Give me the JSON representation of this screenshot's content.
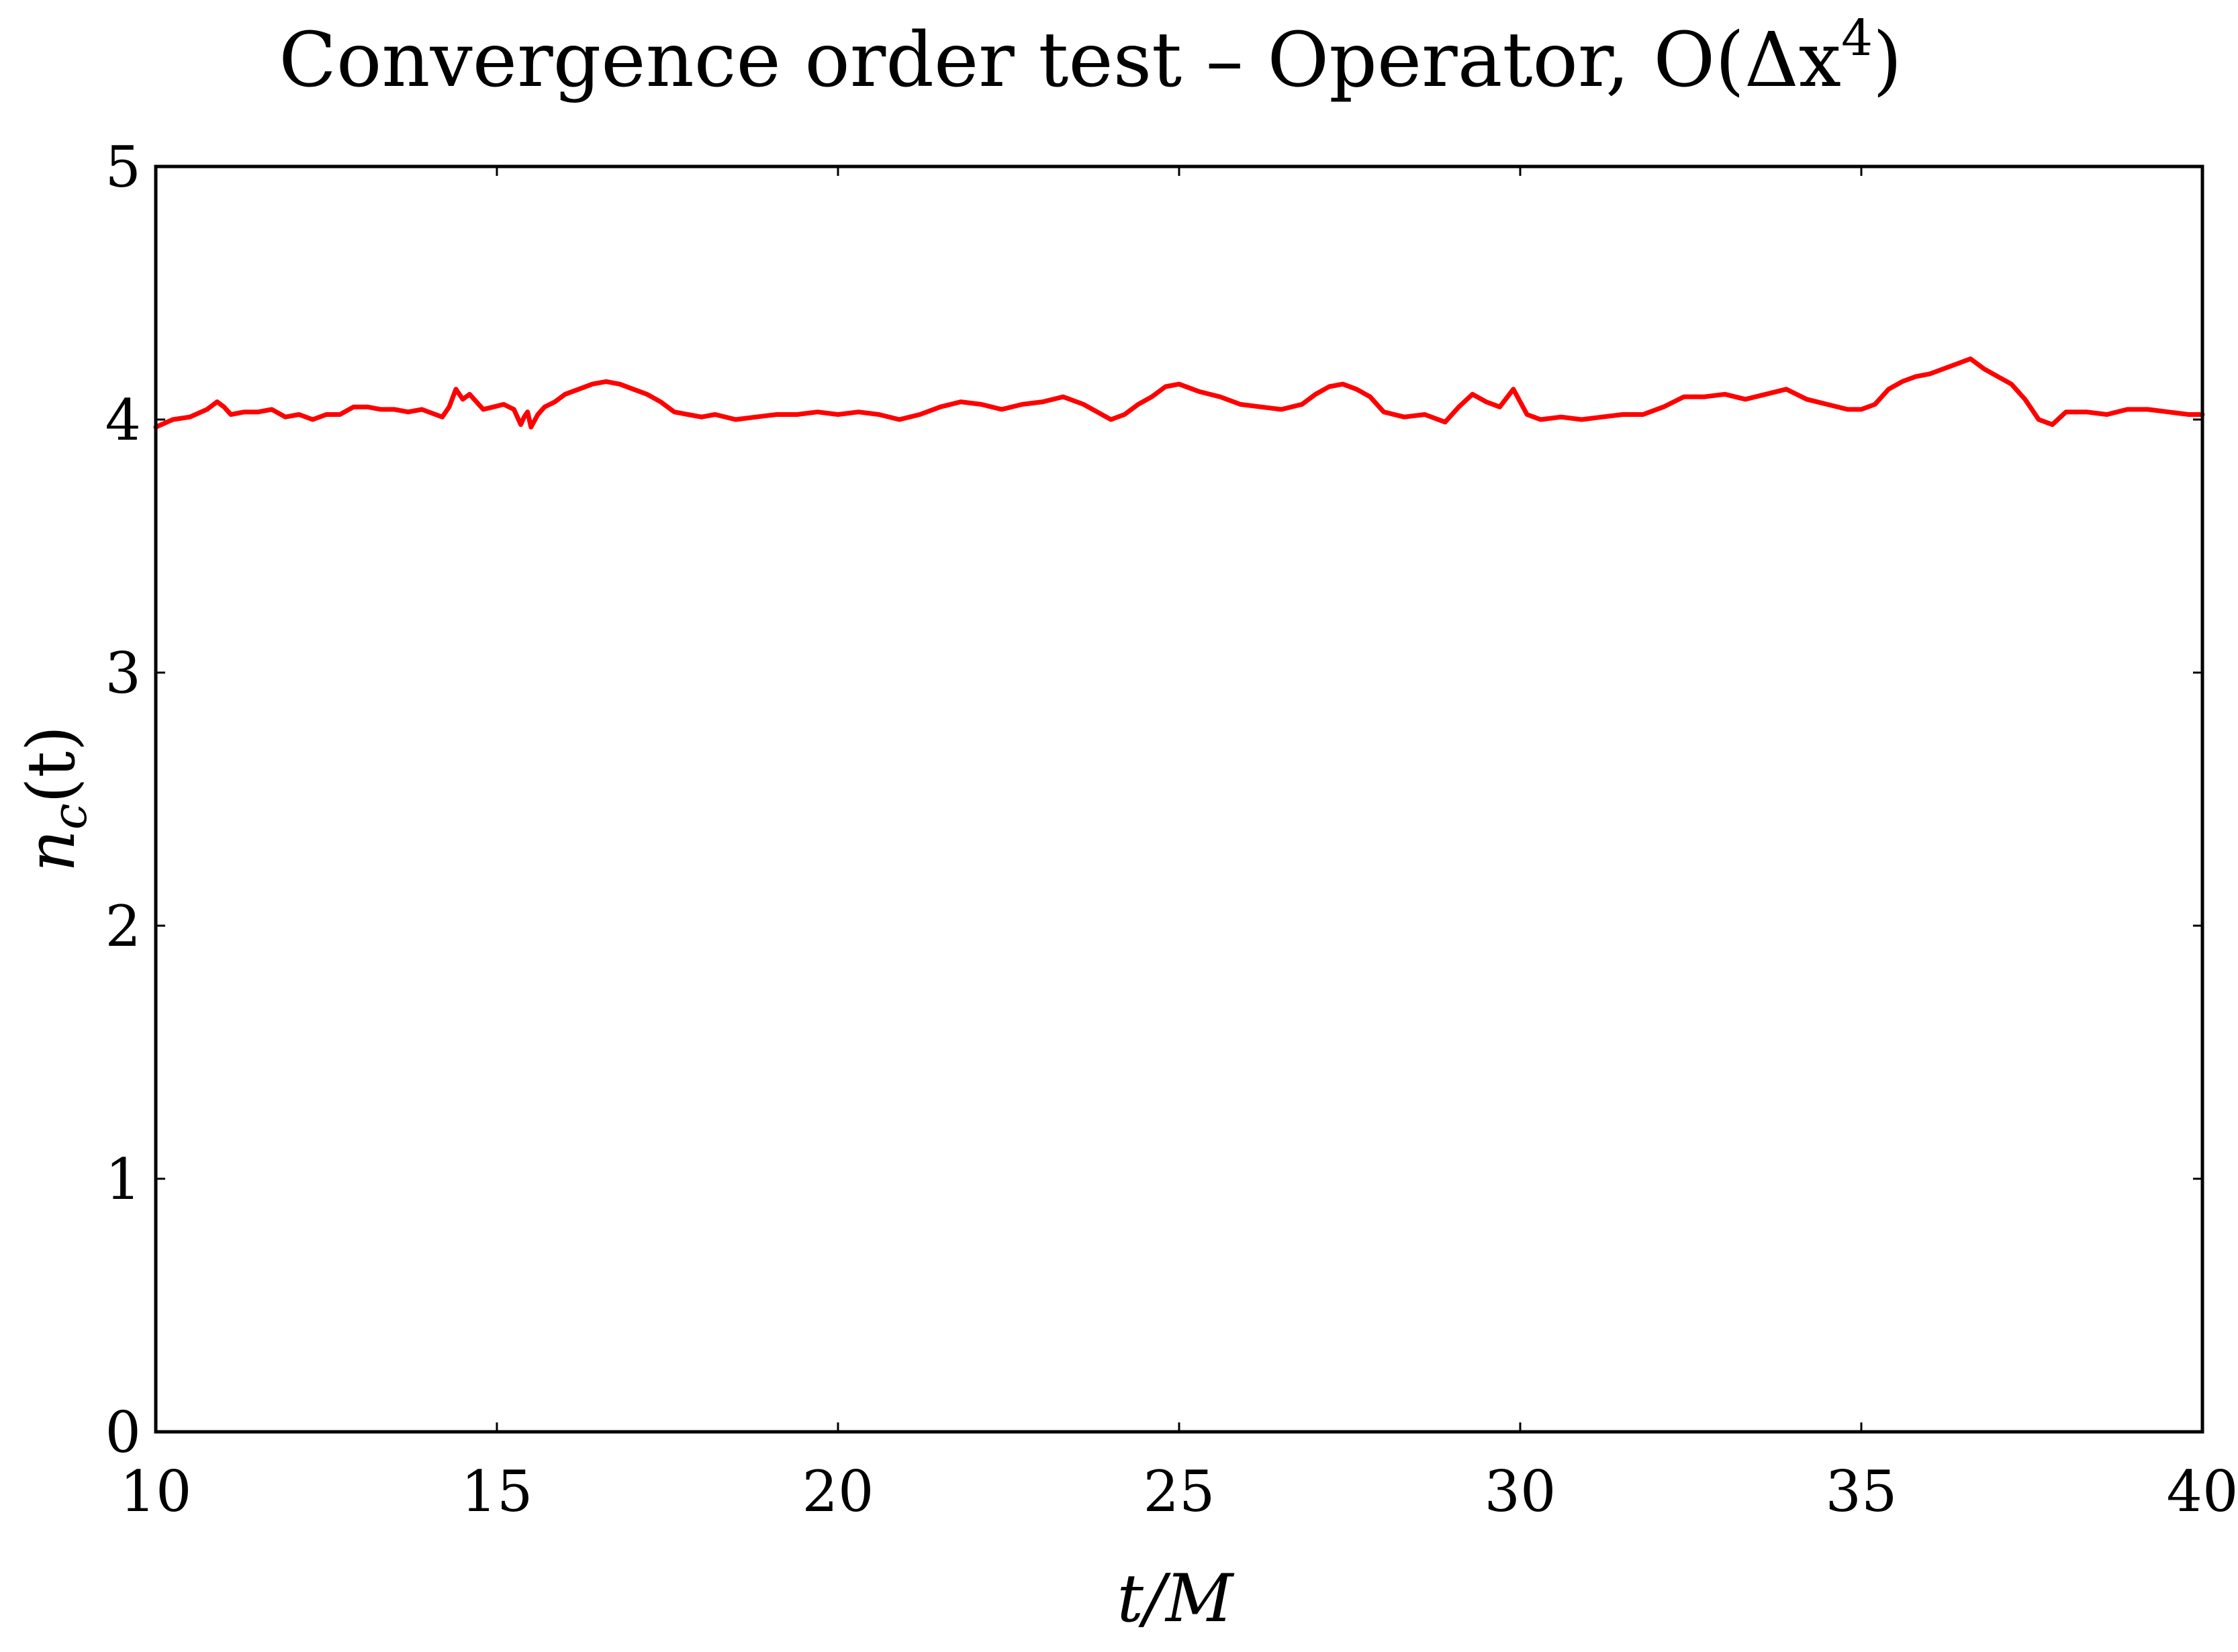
{
  "chart_data": {
    "type": "line",
    "title_main": "Convergence order test – Operator, O(Δx",
    "title_sup": "4",
    "title_end": ")",
    "xlabel": "t/M",
    "ylabel_main": "n",
    "ylabel_sub": "c",
    "ylabel_end": "(t)",
    "xlim": [
      10,
      40
    ],
    "ylim": [
      0,
      5
    ],
    "xticks": [
      10,
      15,
      20,
      25,
      30,
      35,
      40
    ],
    "yticks": [
      0,
      1,
      2,
      3,
      4,
      5
    ],
    "grid": false,
    "series": [
      {
        "color": "#ff0000",
        "x": [
          10.0,
          10.25,
          10.5,
          10.75,
          10.9,
          11.0,
          11.1,
          11.3,
          11.5,
          11.7,
          11.9,
          12.1,
          12.3,
          12.5,
          12.7,
          12.9,
          13.1,
          13.3,
          13.5,
          13.7,
          13.9,
          14.1,
          14.2,
          14.3,
          14.4,
          14.5,
          14.6,
          14.7,
          14.8,
          14.95,
          15.1,
          15.25,
          15.35,
          15.4,
          15.45,
          15.5,
          15.6,
          15.7,
          15.85,
          16.0,
          16.2,
          16.4,
          16.6,
          16.8,
          17.0,
          17.2,
          17.4,
          17.6,
          17.8,
          18.0,
          18.2,
          18.5,
          18.8,
          19.1,
          19.4,
          19.7,
          20.0,
          20.3,
          20.6,
          20.9,
          21.2,
          21.5,
          21.8,
          22.1,
          22.4,
          22.7,
          23.0,
          23.3,
          23.6,
          23.8,
          24.0,
          24.2,
          24.4,
          24.6,
          24.8,
          25.0,
          25.3,
          25.6,
          25.9,
          26.2,
          26.5,
          26.8,
          27.0,
          27.2,
          27.4,
          27.6,
          27.8,
          28.0,
          28.3,
          28.6,
          28.9,
          29.1,
          29.3,
          29.5,
          29.7,
          29.9,
          30.1,
          30.3,
          30.6,
          30.9,
          31.2,
          31.5,
          31.8,
          32.1,
          32.4,
          32.7,
          33.0,
          33.3,
          33.6,
          33.9,
          34.2,
          34.5,
          34.8,
          35.0,
          35.2,
          35.4,
          35.6,
          35.8,
          36.0,
          36.2,
          36.4,
          36.6,
          36.8,
          37.0,
          37.2,
          37.4,
          37.6,
          37.8,
          38.0,
          38.3,
          38.6,
          38.9,
          39.2,
          39.5,
          39.8,
          40.0
        ],
        "y": [
          3.97,
          4.0,
          4.01,
          4.04,
          4.07,
          4.05,
          4.02,
          4.03,
          4.03,
          4.04,
          4.01,
          4.02,
          4.0,
          4.02,
          4.02,
          4.05,
          4.05,
          4.04,
          4.04,
          4.03,
          4.04,
          4.02,
          4.01,
          4.05,
          4.12,
          4.08,
          4.1,
          4.07,
          4.04,
          4.05,
          4.06,
          4.04,
          3.98,
          4.01,
          4.03,
          3.97,
          4.02,
          4.05,
          4.07,
          4.1,
          4.12,
          4.14,
          4.15,
          4.14,
          4.12,
          4.1,
          4.07,
          4.03,
          4.02,
          4.01,
          4.02,
          4.0,
          4.01,
          4.02,
          4.02,
          4.03,
          4.02,
          4.03,
          4.02,
          4.0,
          4.02,
          4.05,
          4.07,
          4.06,
          4.04,
          4.06,
          4.07,
          4.09,
          4.06,
          4.03,
          4.0,
          4.02,
          4.06,
          4.09,
          4.13,
          4.14,
          4.11,
          4.09,
          4.06,
          4.05,
          4.04,
          4.06,
          4.1,
          4.13,
          4.14,
          4.12,
          4.09,
          4.03,
          4.01,
          4.02,
          3.99,
          4.05,
          4.1,
          4.07,
          4.05,
          4.12,
          4.02,
          4.0,
          4.01,
          4.0,
          4.01,
          4.02,
          4.02,
          4.05,
          4.09,
          4.09,
          4.1,
          4.08,
          4.1,
          4.12,
          4.08,
          4.06,
          4.04,
          4.04,
          4.06,
          4.12,
          4.15,
          4.17,
          4.18,
          4.2,
          4.22,
          4.24,
          4.2,
          4.17,
          4.14,
          4.08,
          4.0,
          3.98,
          4.03,
          4.03,
          4.02,
          4.04,
          4.04,
          4.03,
          4.02,
          4.02
        ]
      }
    ]
  }
}
